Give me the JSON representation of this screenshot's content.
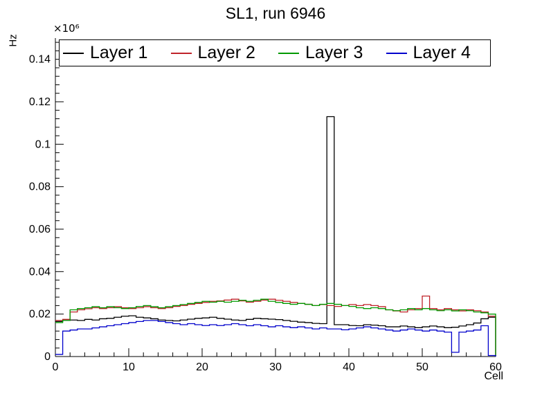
{
  "chart_data": {
    "type": "line",
    "subtype": "step-histogram",
    "title": "SL1, run 6946",
    "xlabel": "Cell",
    "ylabel": "Hz",
    "y_multiplier": "×10⁶",
    "xlim": [
      0,
      60
    ],
    "ylim": [
      0,
      0.15
    ],
    "bin_width": 1,
    "grid": false,
    "legend_position": "top-inside",
    "x_ticks": {
      "values": [
        0,
        10,
        20,
        30,
        40,
        50,
        60
      ],
      "labels": [
        "0",
        "10",
        "20",
        "30",
        "40",
        "50",
        "60"
      ]
    },
    "y_ticks": {
      "values": [
        0,
        0.02,
        0.04,
        0.06,
        0.08,
        0.1,
        0.12,
        0.14
      ],
      "labels": [
        "0",
        "0.02",
        "0.04",
        "0.06",
        "0.08",
        "0.1",
        "0.12",
        "0.14"
      ]
    },
    "series": [
      {
        "name": "Layer 1",
        "color": "#000000",
        "values": [
          0.0165,
          0.017,
          0.0172,
          0.017,
          0.0175,
          0.0172,
          0.0178,
          0.018,
          0.0185,
          0.019,
          0.0192,
          0.0185,
          0.0182,
          0.0178,
          0.0172,
          0.017,
          0.0168,
          0.0172,
          0.0176,
          0.018,
          0.0182,
          0.0185,
          0.018,
          0.0176,
          0.0172,
          0.017,
          0.0175,
          0.018,
          0.0178,
          0.0176,
          0.0174,
          0.017,
          0.0166,
          0.0162,
          0.016,
          0.0156,
          0.0155,
          0.113,
          0.015,
          0.015,
          0.0146,
          0.0145,
          0.015,
          0.0148,
          0.0145,
          0.014,
          0.014,
          0.0144,
          0.014,
          0.0136,
          0.014,
          0.0144,
          0.014,
          0.0136,
          0.0138,
          0.0144,
          0.015,
          0.0158,
          0.0178,
          0.0185
        ]
      },
      {
        "name": "Layer 2",
        "color": "#bf2229",
        "values": [
          0.017,
          0.0175,
          0.021,
          0.022,
          0.0225,
          0.023,
          0.0226,
          0.023,
          0.0235,
          0.023,
          0.0226,
          0.023,
          0.0235,
          0.023,
          0.0226,
          0.023,
          0.0236,
          0.024,
          0.0246,
          0.025,
          0.0255,
          0.026,
          0.0262,
          0.0266,
          0.027,
          0.0262,
          0.0256,
          0.026,
          0.0266,
          0.027,
          0.0265,
          0.026,
          0.0255,
          0.025,
          0.0246,
          0.024,
          0.0245,
          0.024,
          0.0236,
          0.024,
          0.0245,
          0.024,
          0.0245,
          0.024,
          0.0235,
          0.022,
          0.0215,
          0.021,
          0.022,
          0.0226,
          0.0285,
          0.0226,
          0.022,
          0.0226,
          0.022,
          0.0215,
          0.022,
          0.0216,
          0.021,
          0.019
        ]
      },
      {
        "name": "Layer 3",
        "color": "#009900",
        "values": [
          0.016,
          0.017,
          0.022,
          0.0226,
          0.023,
          0.0235,
          0.023,
          0.0235,
          0.023,
          0.0226,
          0.023,
          0.0236,
          0.024,
          0.0235,
          0.023,
          0.0235,
          0.024,
          0.0245,
          0.025,
          0.0255,
          0.026,
          0.0256,
          0.026,
          0.0256,
          0.026,
          0.0265,
          0.026,
          0.0265,
          0.027,
          0.026,
          0.0255,
          0.025,
          0.0246,
          0.025,
          0.0246,
          0.024,
          0.0246,
          0.025,
          0.0246,
          0.024,
          0.0236,
          0.023,
          0.0226,
          0.023,
          0.0226,
          0.022,
          0.0216,
          0.022,
          0.0226,
          0.022,
          0.0226,
          0.022,
          0.0216,
          0.022,
          0.0215,
          0.022,
          0.0216,
          0.021,
          0.0206,
          0.02
        ]
      },
      {
        "name": "Layer 4",
        "color": "#0000cc",
        "values": [
          0.001,
          0.012,
          0.0125,
          0.013,
          0.013,
          0.0135,
          0.014,
          0.0145,
          0.015,
          0.0155,
          0.016,
          0.0165,
          0.017,
          0.017,
          0.0165,
          0.016,
          0.0155,
          0.015,
          0.0155,
          0.015,
          0.0146,
          0.015,
          0.0146,
          0.015,
          0.0155,
          0.015,
          0.0145,
          0.015,
          0.0145,
          0.014,
          0.0145,
          0.014,
          0.0136,
          0.014,
          0.0135,
          0.013,
          0.0135,
          0.013,
          0.013,
          0.0126,
          0.013,
          0.0135,
          0.014,
          0.0135,
          0.013,
          0.0125,
          0.012,
          0.0125,
          0.013,
          0.0125,
          0.012,
          0.0125,
          0.012,
          0.0115,
          0.002,
          0.0115,
          0.012,
          0.0125,
          0.0145,
          0.0005
        ]
      }
    ]
  }
}
